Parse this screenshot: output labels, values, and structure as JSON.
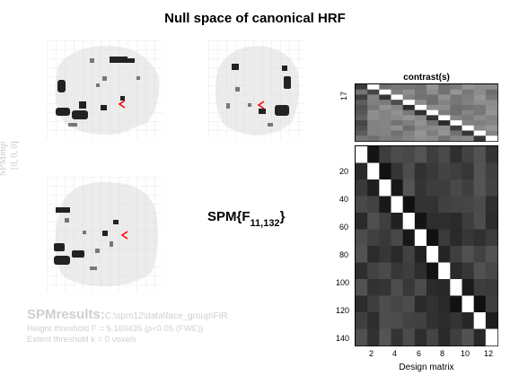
{
  "title": "Null space of canonical HRF",
  "stat": {
    "base": "SPM{F",
    "sub": "11,132",
    "close": "}"
  },
  "side_label": {
    "spm": "SPM",
    "mip": "mip",
    "coords": "[0, 0, 0]"
  },
  "results": {
    "heading": "SPMresults:",
    "path": "C:\\spm12\\data\\face_group\\FIR",
    "height_threshold": "Height threshold F = 5.169435  {p<0.05 (FWE)}",
    "extent_threshold": "Extent threshold k = 0 voxels"
  },
  "contrast": {
    "title": "contrast(s)",
    "ytick": "17"
  },
  "design_matrix": {
    "xlabel": "Design matrix",
    "yticks": [
      "20",
      "40",
      "60",
      "80",
      "100",
      "120",
      "140"
    ],
    "xticks": [
      "2",
      "4",
      "6",
      "8",
      "10",
      "12"
    ]
  },
  "glass_brain": {
    "views": [
      "sagittal",
      "coronal",
      "axial"
    ],
    "cursor_color": "#ff0000"
  },
  "colors": {
    "faint_text": "#cfcfcf",
    "cursor": "#ff0000"
  }
}
